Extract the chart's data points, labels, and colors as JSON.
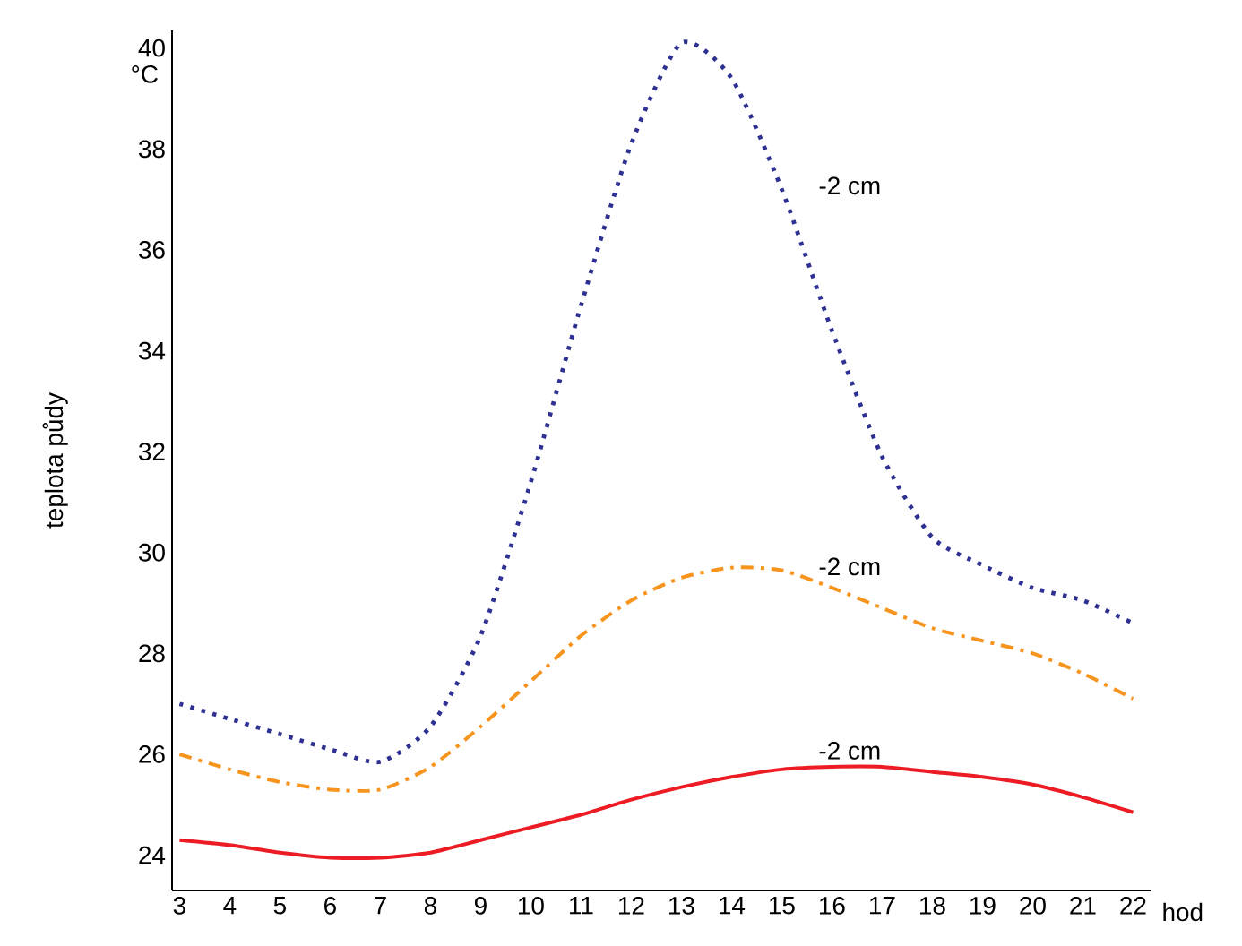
{
  "chart_data": {
    "type": "line",
    "xlabel": "hod",
    "ylabel": "teplota půdy",
    "x": [
      3,
      4,
      5,
      6,
      7,
      8,
      9,
      10,
      11,
      12,
      13,
      14,
      15,
      16,
      17,
      18,
      19,
      20,
      21,
      22
    ],
    "series": [
      {
        "name": "-2 cm",
        "color": "#2e3192",
        "line_style": "dotted",
        "values": [
          27.0,
          26.7,
          26.4,
          26.1,
          25.85,
          26.55,
          28.35,
          31.4,
          34.9,
          38.1,
          40.1,
          39.4,
          37.2,
          34.4,
          31.9,
          30.3,
          29.75,
          29.3,
          29.05,
          28.6
        ]
      },
      {
        "name": "-2 cm",
        "color": "#f7941d",
        "line_style": "dashdotted",
        "values": [
          26.0,
          25.7,
          25.45,
          25.3,
          25.3,
          25.75,
          26.55,
          27.45,
          28.35,
          29.05,
          29.5,
          29.7,
          29.65,
          29.3,
          28.9,
          28.5,
          28.25,
          28.0,
          27.6,
          27.1
        ]
      },
      {
        "name": "-2 cm",
        "color": "#ed1c24",
        "line_style": "solid",
        "values": [
          24.3,
          24.2,
          24.05,
          23.95,
          23.95,
          24.05,
          24.3,
          24.55,
          24.8,
          25.1,
          25.35,
          25.55,
          25.7,
          25.75,
          25.75,
          25.65,
          25.55,
          25.4,
          25.15,
          24.85
        ]
      }
    ],
    "annotations": [
      "°C"
    ],
    "xlim": [
      2.85,
      22.35
    ],
    "ylim": [
      23.3,
      40.35
    ],
    "xticks": [
      3,
      4,
      5,
      6,
      7,
      8,
      9,
      10,
      11,
      12,
      13,
      14,
      15,
      16,
      17,
      18,
      19,
      20,
      21,
      22
    ],
    "yticks": [
      24,
      26,
      28,
      30,
      32,
      34,
      36,
      38,
      40
    ],
    "grid": false
  }
}
